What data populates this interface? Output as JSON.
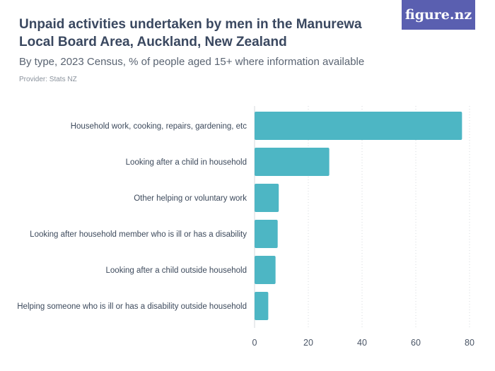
{
  "header": {
    "title": "Unpaid activities undertaken by men in the Manurewa Local Board Area, Auckland, New Zealand",
    "subtitle": "By type, 2023 Census, % of people aged 15+ where information available",
    "provider": "Provider: Stats NZ",
    "logo_text": "figure.nz"
  },
  "colors": {
    "bar": "#4db6c4",
    "grid": "#d4d8dd",
    "logo_bg": "#5a5fb0"
  },
  "chart_data": {
    "type": "bar",
    "orientation": "horizontal",
    "categories": [
      "Household work, cooking, repairs, gardening, etc",
      "Looking after a child in household",
      "Other helping or voluntary work",
      "Looking after household member who is ill or has a disability",
      "Looking after a child outside household",
      "Helping someone who is ill or has a disability outside household"
    ],
    "values": [
      77.2,
      27.8,
      9.0,
      8.6,
      7.8,
      5.1
    ],
    "xlim": [
      0,
      80
    ],
    "xticks": [
      0,
      20,
      40,
      60,
      80
    ],
    "title": "Unpaid activities undertaken by men in the Manurewa Local Board Area, Auckland, New Zealand",
    "xlabel": "",
    "ylabel": "",
    "grid": true
  }
}
